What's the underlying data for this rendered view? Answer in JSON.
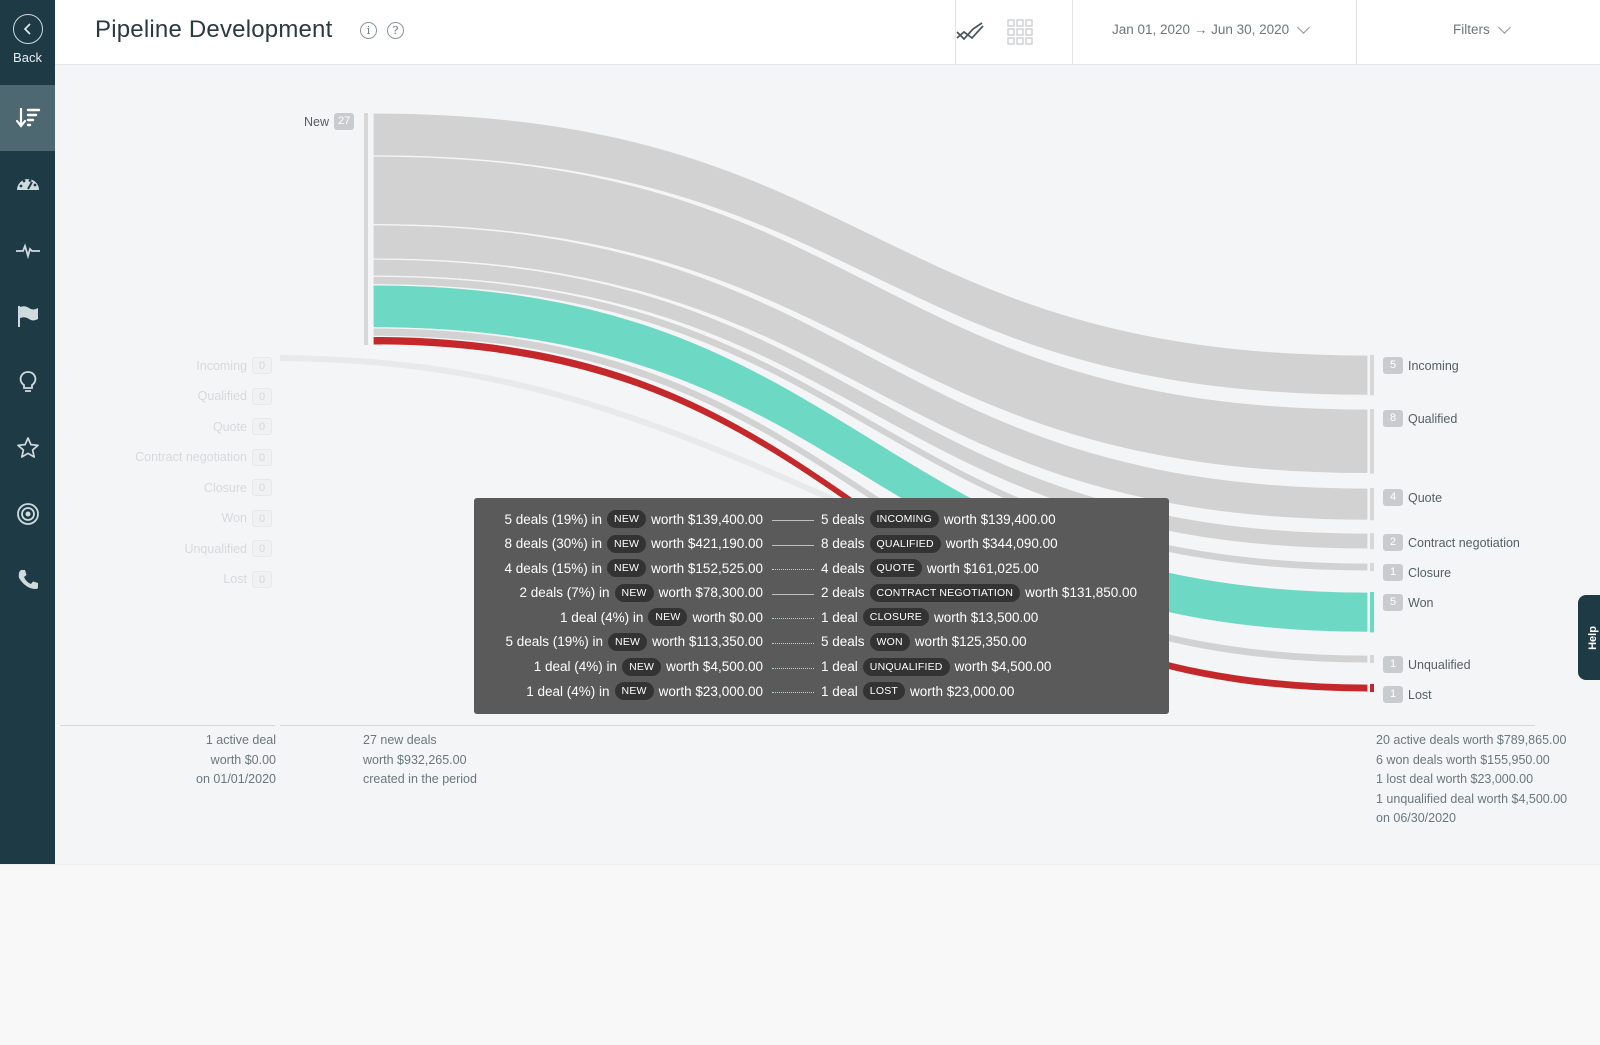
{
  "sidebar": {
    "back_label": "Back",
    "items": [
      {
        "icon": "sort-down-icon",
        "active": true
      },
      {
        "icon": "dashboard-gauge-icon",
        "active": false
      },
      {
        "icon": "pulse-icon",
        "active": false
      },
      {
        "icon": "flag-icon",
        "active": false
      },
      {
        "icon": "lightbulb-icon",
        "active": false
      },
      {
        "icon": "star-icon",
        "active": false
      },
      {
        "icon": "target-icon",
        "active": false
      },
      {
        "icon": "phone-icon",
        "active": false
      }
    ]
  },
  "header": {
    "title": "Pipeline Development",
    "date_range": "Jan 01, 2020 → Jun 30, 2020",
    "filters_label": "Filters"
  },
  "chart_data": {
    "type": "sankey",
    "source": {
      "label": "New",
      "count": "27"
    },
    "left_stages": [
      {
        "label": "Incoming",
        "count": "0"
      },
      {
        "label": "Qualified",
        "count": "0"
      },
      {
        "label": "Quote",
        "count": "0"
      },
      {
        "label": "Contract negotiation",
        "count": "0"
      },
      {
        "label": "Closure",
        "count": "0"
      },
      {
        "label": "Won",
        "count": "0"
      },
      {
        "label": "Unqualified",
        "count": "0"
      },
      {
        "label": "Lost",
        "count": "0"
      }
    ],
    "right_stages": [
      {
        "label": "Incoming",
        "count": "5"
      },
      {
        "label": "Qualified",
        "count": "8"
      },
      {
        "label": "Quote",
        "count": "4"
      },
      {
        "label": "Contract negotiation",
        "count": "2"
      },
      {
        "label": "Closure",
        "count": "1"
      },
      {
        "label": "Won",
        "count": "5"
      },
      {
        "label": "Unqualified",
        "count": "1"
      },
      {
        "label": "Lost",
        "count": "1"
      }
    ],
    "flows": [
      {
        "from": "New",
        "to": "Incoming",
        "deals": 5,
        "color": "#d2d2d2"
      },
      {
        "from": "New",
        "to": "Qualified",
        "deals": 8,
        "color": "#d2d2d2"
      },
      {
        "from": "New",
        "to": "Quote",
        "deals": 4,
        "color": "#d2d2d2"
      },
      {
        "from": "New",
        "to": "Contract negotiation",
        "deals": 2,
        "color": "#d2d2d2"
      },
      {
        "from": "New",
        "to": "Closure",
        "deals": 1,
        "color": "#d2d2d2"
      },
      {
        "from": "New",
        "to": "Won",
        "deals": 5,
        "color": "#6dd9c5"
      },
      {
        "from": "New",
        "to": "Unqualified",
        "deals": 1,
        "color": "#d2d2d2"
      },
      {
        "from": "New",
        "to": "Lost",
        "deals": 1,
        "color": "#c5282a"
      }
    ]
  },
  "tooltip": {
    "rows": [
      {
        "from_text": "5 deals (19%) in",
        "from_stage": "NEW",
        "from_worth": "worth $139,400.00",
        "to_text": "5 deals",
        "to_stage": "INCOMING",
        "to_worth": "worth $139,400.00"
      },
      {
        "from_text": "8 deals (30%) in",
        "from_stage": "NEW",
        "from_worth": "worth $421,190.00",
        "to_text": "8 deals",
        "to_stage": "QUALIFIED",
        "to_worth": "worth $344,090.00"
      },
      {
        "from_text": "4 deals (15%) in",
        "from_stage": "NEW",
        "from_worth": "worth $152,525.00",
        "to_text": "4 deals",
        "to_stage": "QUOTE",
        "to_worth": "worth $161,025.00"
      },
      {
        "from_text": "2 deals (7%) in",
        "from_stage": "NEW",
        "from_worth": "worth $78,300.00",
        "to_text": "2 deals",
        "to_stage": "CONTRACT NEGOTIATION",
        "to_worth": "worth $131,850.00"
      },
      {
        "from_text": "1 deal (4%) in",
        "from_stage": "NEW",
        "from_worth": "worth $0.00",
        "to_text": "1 deal",
        "to_stage": "CLOSURE",
        "to_worth": "worth $13,500.00"
      },
      {
        "from_text": "5 deals (19%) in",
        "from_stage": "NEW",
        "from_worth": "worth $113,350.00",
        "to_text": "5 deals",
        "to_stage": "WON",
        "to_worth": "worth $125,350.00"
      },
      {
        "from_text": "1 deal (4%) in",
        "from_stage": "NEW",
        "from_worth": "worth $4,500.00",
        "to_text": "1 deal",
        "to_stage": "UNQUALIFIED",
        "to_worth": "worth $4,500.00"
      },
      {
        "from_text": "1 deal (4%) in",
        "from_stage": "NEW",
        "from_worth": "worth $23,000.00",
        "to_text": "1 deal",
        "to_stage": "LOST",
        "to_worth": "worth $23,000.00"
      }
    ]
  },
  "summaries": {
    "start": [
      "1 active deal",
      "worth $0.00",
      "on 01/01/2020"
    ],
    "created": [
      "27 new deals",
      "worth $932,265.00",
      "created in the period"
    ],
    "end": [
      "20 active deals worth $789,865.00",
      "6 won deals worth $155,950.00",
      "1 lost deal worth $23,000.00",
      "1 unqualified deal worth $4,500.00",
      "on 06/30/2020"
    ]
  },
  "help_label": "Help",
  "colors": {
    "sidebar": "#1e3a45",
    "won": "#6dd9c5",
    "lost": "#c5282a",
    "flow": "#d2d2d2"
  }
}
